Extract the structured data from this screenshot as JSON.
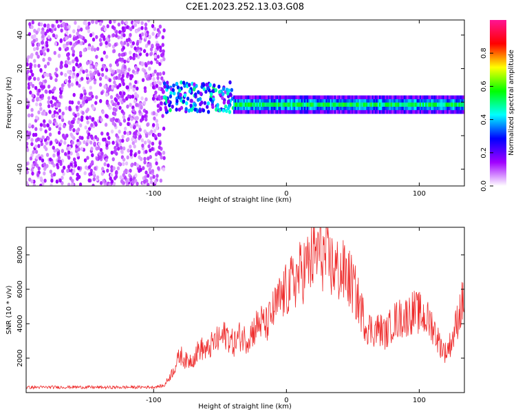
{
  "figure": {
    "title": "C2E1.2023.252.13.03.G08"
  },
  "colors": {
    "snr_line": "#ee2a2a",
    "colormap": [
      "#ffffff",
      "#a000ff",
      "#0000ff",
      "#00ffff",
      "#00ff00",
      "#ffff00",
      "#ff0000",
      "#ff1493"
    ]
  },
  "chart_data": [
    {
      "type": "heatmap",
      "xlabel": "Height of straight line (km)",
      "ylabel": "Frequency (Hz)",
      "xlim": [
        -196,
        134
      ],
      "ylim": [
        -50,
        49
      ],
      "xticks": [
        -100,
        0,
        100
      ],
      "xtick_labels": [
        "-100",
        "0",
        "100"
      ],
      "yticks": [
        -40,
        -20,
        0,
        20,
        40
      ],
      "ytick_labels": [
        "-40",
        "-20",
        "0",
        "20",
        "40"
      ],
      "grid": false,
      "colorbar": {
        "label": "Normalized spectral amplitude",
        "range": [
          0,
          1
        ],
        "ticks": [
          0.0,
          0.2,
          0.4,
          0.6,
          0.8
        ],
        "tick_labels": [
          "0.0",
          "0.2",
          "0.4",
          "0.6",
          "0.8"
        ]
      },
      "regions": [
        {
          "description": "broadband noise",
          "x": [
            -196,
            -92
          ],
          "freq_span": [
            -50,
            49
          ],
          "amplitude": 0.1
        },
        {
          "description": "scattered signal onset",
          "x": [
            -92,
            -40
          ],
          "freq_span": [
            -6,
            12
          ],
          "amplitude": 0.35
        },
        {
          "description": "narrow carrier line",
          "x": [
            -40,
            134
          ],
          "freq_center": -1.5,
          "freq_halfwidth": 2.5,
          "amplitude": 0.55
        }
      ]
    },
    {
      "type": "line",
      "xlabel": "Height of straight line (km)",
      "ylabel": "SNR (10 * v/v)",
      "xlim": [
        -196,
        134
      ],
      "ylim": [
        0,
        9600
      ],
      "xticks": [
        -100,
        0,
        100
      ],
      "xtick_labels": [
        "-100",
        "0",
        "100"
      ],
      "yticks": [
        2000,
        4000,
        6000,
        8000
      ],
      "ytick_labels": [
        "2000",
        "4000",
        "6000",
        "8000"
      ],
      "grid": false,
      "series": [
        {
          "x": [
            -196,
            -180,
            -160,
            -140,
            -120,
            -100,
            -92,
            -85,
            -80,
            -75,
            -70,
            -65,
            -60,
            -55,
            -50,
            -45,
            -40,
            -35,
            -30,
            -25,
            -20,
            -15,
            -10,
            -5,
            0,
            5,
            10,
            15,
            20,
            25,
            30,
            35,
            40,
            45,
            50,
            55,
            60,
            65,
            70,
            75,
            80,
            85,
            90,
            95,
            100,
            105,
            110,
            115,
            120,
            125,
            130,
            134
          ],
          "y": [
            300,
            310,
            320,
            300,
            310,
            320,
            400,
            1300,
            2200,
            1800,
            2000,
            2600,
            2400,
            2900,
            3100,
            3400,
            2800,
            3300,
            3100,
            3600,
            4100,
            3900,
            4700,
            5400,
            5900,
            6400,
            6900,
            7300,
            7800,
            8300,
            7700,
            7300,
            7000,
            6900,
            6200,
            5100,
            3900,
            3600,
            3700,
            3400,
            4100,
            4300,
            4400,
            4700,
            4600,
            4300,
            3900,
            2900,
            2300,
            3100,
            4600,
            5500
          ]
        }
      ]
    }
  ]
}
